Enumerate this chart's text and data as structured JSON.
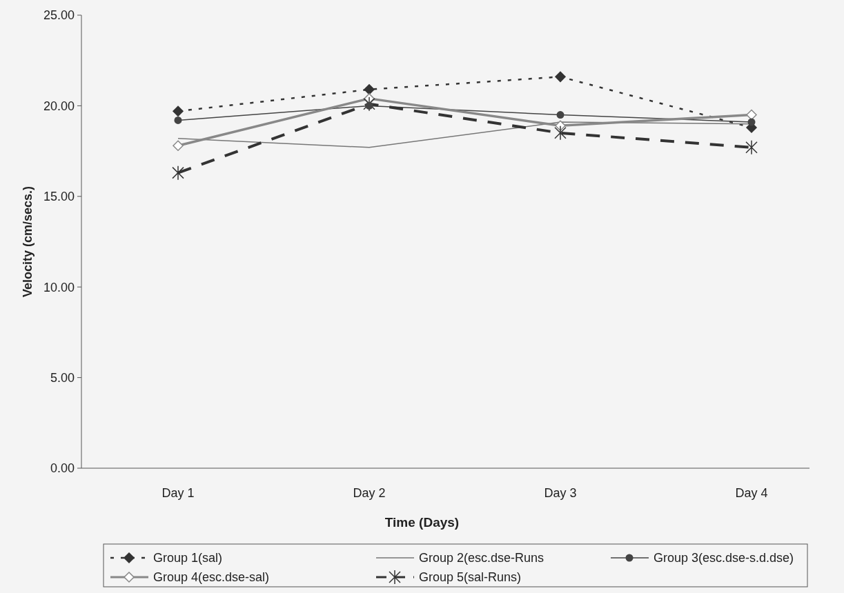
{
  "chart_data": {
    "type": "line",
    "xlabel": "Time (Days)",
    "ylabel": "Velocity (cm/secs.)",
    "categories": [
      "Day 1",
      "Day 2",
      "Day 3",
      "Day 4"
    ],
    "ylim": [
      0,
      25
    ],
    "yticks": [
      {
        "value": 0,
        "label": "0.00"
      },
      {
        "value": 5,
        "label": "5.00"
      },
      {
        "value": 10,
        "label": "10.00"
      },
      {
        "value": 15,
        "label": "15.00"
      },
      {
        "value": 20,
        "label": "20.00"
      },
      {
        "value": 25,
        "label": "25.00"
      }
    ],
    "legend": "bottom",
    "series": [
      {
        "name": "Group 1(sal)",
        "color": "#333333",
        "values": [
          19.7,
          20.9,
          21.6,
          18.8
        ],
        "marker": "diamond",
        "line_style": "dotted"
      },
      {
        "name": "Group 2(esc.dse-Runs",
        "color": "#777777",
        "values": [
          18.2,
          17.7,
          19.1,
          19.0
        ],
        "marker": "none",
        "line_style": "solid"
      },
      {
        "name": "Group 3(esc.dse-s.d.dse)",
        "color": "#444444",
        "values": [
          19.2,
          20.0,
          19.5,
          19.1
        ],
        "marker": "circle",
        "line_style": "solid"
      },
      {
        "name": "Group 4(esc.dse-sal)",
        "color": "#888888",
        "values": [
          17.8,
          20.4,
          18.9,
          19.5
        ],
        "marker": "diamond",
        "line_style": "solid"
      },
      {
        "name": "Group 5(sal-Runs)",
        "color": "#333333",
        "values": [
          16.3,
          20.1,
          18.5,
          17.7
        ],
        "marker": "cross",
        "line_style": "dashed"
      }
    ]
  }
}
